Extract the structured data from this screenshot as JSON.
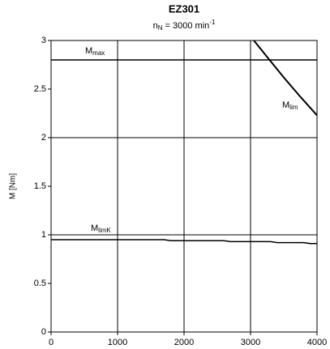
{
  "chart_data": {
    "type": "line",
    "title": "EZ301",
    "subtitle": [
      "n",
      "N",
      " = 3000 min",
      "-1"
    ],
    "ylabel": "M [Nm]",
    "xlim": [
      0,
      4000
    ],
    "xticks": [
      0,
      1000,
      2000,
      3000,
      4000
    ],
    "ylim": [
      0,
      3
    ],
    "yticks": [
      0,
      0.5,
      1,
      1.5,
      2,
      2.5,
      3
    ],
    "xgrid": [
      1000,
      2000,
      3000
    ],
    "ygrid": [
      1,
      2,
      3
    ],
    "series": [
      {
        "color": "#000000",
        "x": [
          0,
          4000
        ],
        "values": [
          2.8,
          2.8
        ]
      },
      {
        "color": "#000000",
        "x": [
          3050,
          3250,
          3500,
          3750,
          4000
        ],
        "values": [
          3.0,
          2.83,
          2.62,
          2.42,
          2.23
        ]
      },
      {
        "color": "#000000",
        "x": [
          0,
          1700,
          1800,
          2600,
          2700,
          3300,
          3400,
          3800,
          3900,
          4000
        ],
        "values": [
          0.95,
          0.95,
          0.94,
          0.94,
          0.93,
          0.93,
          0.92,
          0.92,
          0.91,
          0.91
        ]
      }
    ],
    "annotations": [
      {
        "text": [
          "M",
          "max"
        ]
      },
      {
        "text": [
          "M",
          "lim"
        ]
      },
      {
        "text": [
          "M",
          "limK"
        ]
      }
    ]
  }
}
